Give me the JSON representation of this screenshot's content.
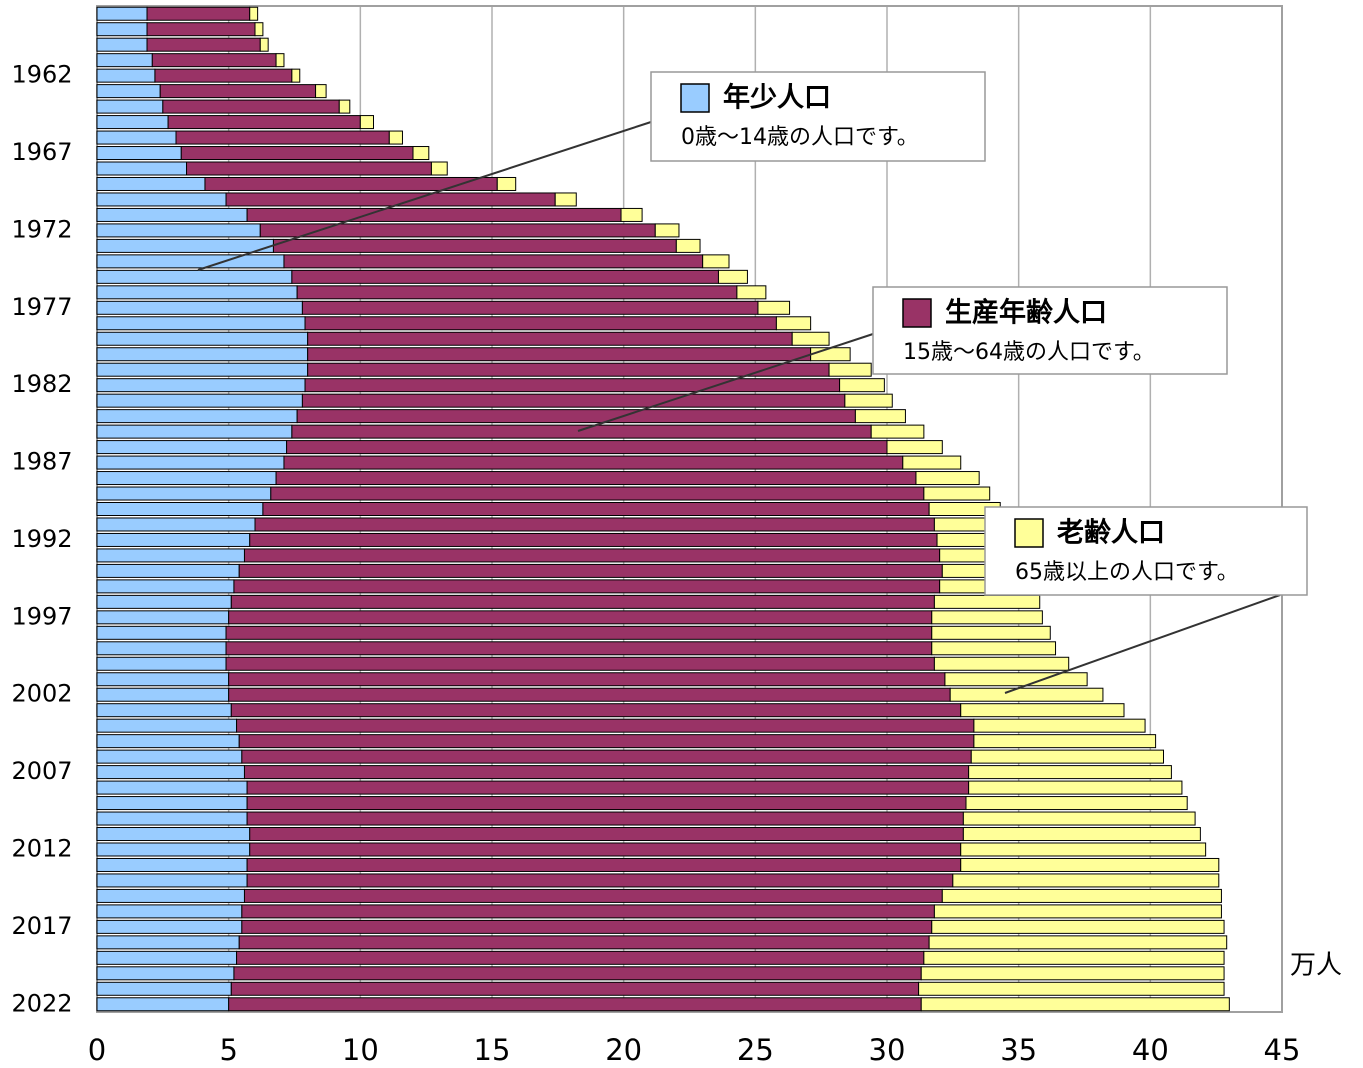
{
  "chart_data": {
    "type": "stacked-barh",
    "x_label": "万人",
    "categories": [
      null,
      null,
      null,
      null,
      "1962",
      null,
      null,
      null,
      null,
      "1967",
      null,
      null,
      null,
      null,
      "1972",
      null,
      null,
      null,
      null,
      "1977",
      null,
      null,
      null,
      null,
      "1982",
      null,
      null,
      null,
      null,
      "1987",
      null,
      null,
      null,
      null,
      "1992",
      null,
      null,
      null,
      null,
      "1997",
      null,
      null,
      null,
      null,
      "2002",
      null,
      null,
      null,
      null,
      "2007",
      null,
      null,
      null,
      null,
      "2012",
      null,
      null,
      null,
      null,
      "2017",
      null,
      null,
      null,
      null,
      "2022"
    ],
    "series": [
      {
        "name": "年少人口",
        "description": "0歳～14歳の人口です。",
        "color": "#99ccff",
        "values": [
          1.9,
          1.9,
          1.9,
          2.1,
          2.2,
          2.4,
          2.5,
          2.7,
          3.0,
          3.2,
          3.4,
          4.1,
          4.9,
          5.7,
          6.2,
          6.7,
          7.1,
          7.4,
          7.6,
          7.8,
          7.9,
          8.0,
          8.0,
          8.0,
          7.9,
          7.8,
          7.6,
          7.4,
          7.2,
          7.1,
          6.8,
          6.6,
          6.3,
          6.0,
          5.8,
          5.6,
          5.4,
          5.2,
          5.1,
          5.0,
          4.9,
          4.9,
          4.9,
          5.0,
          5.0,
          5.1,
          5.3,
          5.4,
          5.5,
          5.6,
          5.7,
          5.7,
          5.7,
          5.8,
          5.8,
          5.7,
          5.7,
          5.6,
          5.5,
          5.5,
          5.4,
          5.3,
          5.2,
          5.1,
          5.0
        ]
      },
      {
        "name": "生産年齢人口",
        "description": "15歳～64歳の人口です。",
        "color": "#993366",
        "values": [
          3.9,
          4.1,
          4.3,
          4.7,
          5.2,
          5.9,
          6.7,
          7.3,
          8.1,
          8.8,
          9.3,
          11.1,
          12.5,
          14.2,
          15.0,
          15.3,
          15.9,
          16.2,
          16.7,
          17.3,
          17.9,
          18.4,
          19.1,
          19.8,
          20.3,
          20.6,
          21.2,
          22.0,
          22.8,
          23.5,
          24.3,
          24.8,
          25.3,
          25.8,
          26.1,
          26.4,
          26.7,
          26.8,
          26.7,
          26.7,
          26.8,
          26.8,
          26.9,
          27.2,
          27.4,
          27.7,
          28.0,
          27.9,
          27.7,
          27.5,
          27.4,
          27.3,
          27.2,
          27.1,
          27.0,
          27.1,
          26.8,
          26.5,
          26.3,
          26.2,
          26.2,
          26.1,
          26.1,
          26.1,
          26.3
        ]
      },
      {
        "name": "老齢人口",
        "description": "65歳以上の人口です。",
        "color": "#ffff99",
        "values": [
          0.3,
          0.3,
          0.3,
          0.3,
          0.3,
          0.4,
          0.4,
          0.5,
          0.5,
          0.6,
          0.6,
          0.7,
          0.8,
          0.8,
          0.9,
          0.9,
          1.0,
          1.1,
          1.1,
          1.2,
          1.3,
          1.4,
          1.5,
          1.6,
          1.7,
          1.8,
          1.9,
          2.0,
          2.1,
          2.2,
          2.4,
          2.5,
          2.7,
          2.9,
          3.1,
          3.2,
          3.3,
          3.7,
          4.0,
          4.2,
          4.5,
          4.7,
          5.1,
          5.4,
          5.8,
          6.2,
          6.5,
          6.9,
          7.3,
          7.7,
          8.1,
          8.4,
          8.8,
          9.0,
          9.3,
          9.8,
          10.1,
          10.6,
          10.9,
          11.1,
          11.3,
          11.4,
          11.5,
          11.6,
          11.7
        ]
      }
    ],
    "xlim": [
      0,
      45
    ],
    "xticks": [
      0,
      5,
      10,
      15,
      20,
      25,
      30,
      35,
      40,
      45
    ],
    "grid": true
  }
}
